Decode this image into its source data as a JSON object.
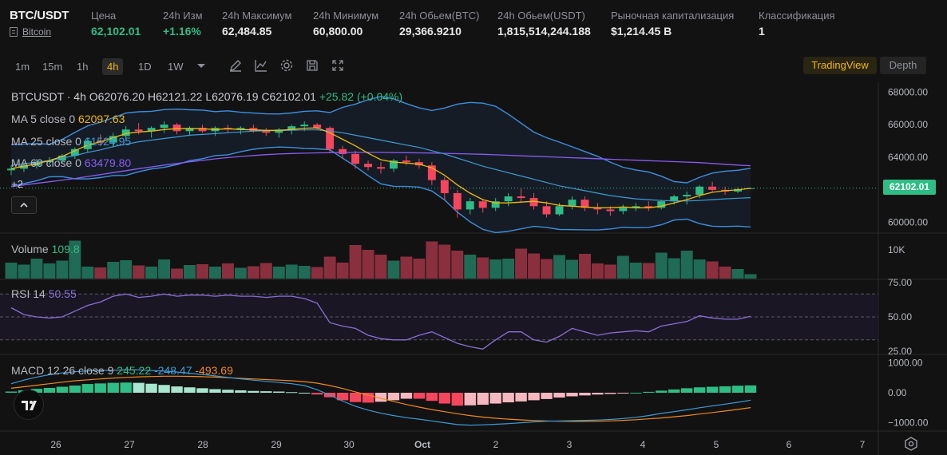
{
  "header": {
    "symbol": "BTC/USDT",
    "asset_name": "Bitcoin",
    "stats": [
      {
        "label": "Цена",
        "value": "62,102.01"
      },
      {
        "label": "24h Изм",
        "value": "+1.16%"
      },
      {
        "label": "24h Максимум",
        "value": "62,484.85"
      },
      {
        "label": "24h Минимум",
        "value": "60,800.00"
      },
      {
        "label": "24h Обьем(BTC)",
        "value": "29,366.9210"
      },
      {
        "label": "24h Обьем(USDT)",
        "value": "1,815,514,244.188"
      },
      {
        "label": "Рыночная капитализация",
        "value": "$1,214.45 B"
      },
      {
        "label": "Классификация",
        "value": "1"
      }
    ]
  },
  "toolbar": {
    "timeframes": [
      "1m",
      "15m",
      "1h",
      "4h",
      "1D",
      "1W"
    ],
    "active_timeframe": "4h",
    "tradingview_label": "TradingView",
    "depth_label": "Depth",
    "icons": [
      "chevron-down-icon",
      "pencil-icon",
      "line-chart-icon",
      "gear-icon",
      "save-icon",
      "fullscreen-icon"
    ]
  },
  "legend": {
    "symbol": "BTCUSDT · 4h",
    "open": "O62076.20",
    "high": "H62121.22",
    "low": "L62076.19",
    "close": "C62102.01",
    "change": "+25.82 (+0.04%)",
    "ma5_label": "MA 5 close 0",
    "ma5_value": "62097.63",
    "ma25_label": "MA 25 close 0",
    "ma25_value": "61524.95",
    "ma60_label": "MA 60 close 0",
    "ma60_value": "63479.80",
    "hidden_count": "+2",
    "volume_label": "Volume",
    "volume_value": "109.8",
    "rsi_label": "RSI 14",
    "rsi_value": "50.55",
    "macd_label": "MACD 12 26 close 9",
    "macd_hist": "245.22",
    "macd_line": "-248.47",
    "macd_signal": "-493.69"
  },
  "colors": {
    "up": "#2ebd85",
    "down": "#f6465d",
    "ma5": "#f0b90b",
    "ma25": "#3d9bd6",
    "ma60": "#8a5cf5",
    "rsi": "#8a6fd6",
    "macd_line": "#3d9bd6",
    "macd_signal": "#f08a1c",
    "accent": "#f0b90b"
  },
  "axes": {
    "price_ticks": [
      "68000.00",
      "66000.00",
      "64000.00",
      "62000.00",
      "60000.00"
    ],
    "last_price": "62102.01",
    "volume_tick": "10K",
    "rsi_ticks": [
      "75.00",
      "50.00",
      "25.00"
    ],
    "macd_ticks": [
      "1000.00",
      "0.00",
      "−1000.00"
    ],
    "time_ticks": [
      "26",
      "27",
      "28",
      "29",
      "30",
      "Oct",
      "2",
      "3",
      "4",
      "5",
      "6",
      "7"
    ]
  },
  "chart_data": {
    "type": "candlestick",
    "ylim": [
      59000,
      69000
    ],
    "candles": [
      [
        63200,
        63500,
        62900,
        63300
      ],
      [
        63300,
        63700,
        63100,
        63500
      ],
      [
        63500,
        63900,
        63300,
        63700
      ],
      [
        63700,
        64000,
        63500,
        63800
      ],
      [
        63800,
        64200,
        63600,
        64100
      ],
      [
        64100,
        64600,
        63900,
        64500
      ],
      [
        64500,
        65200,
        64300,
        65000
      ],
      [
        65000,
        65400,
        64700,
        64900
      ],
      [
        64900,
        65500,
        64600,
        65300
      ],
      [
        65300,
        65900,
        65000,
        65700
      ],
      [
        65700,
        66100,
        65400,
        65600
      ],
      [
        65600,
        65900,
        65200,
        65800
      ],
      [
        65800,
        66200,
        65500,
        66000
      ],
      [
        66000,
        66100,
        65400,
        65600
      ],
      [
        65600,
        65900,
        65300,
        65800
      ],
      [
        65800,
        66000,
        65500,
        65600
      ],
      [
        65600,
        65900,
        65300,
        65800
      ],
      [
        65800,
        66000,
        65500,
        65700
      ],
      [
        65700,
        65900,
        65400,
        65800
      ],
      [
        65800,
        66000,
        65500,
        65600
      ],
      [
        65600,
        65800,
        65300,
        65500
      ],
      [
        65500,
        65800,
        65200,
        65700
      ],
      [
        65700,
        66000,
        65400,
        65900
      ],
      [
        65900,
        66200,
        65600,
        66000
      ],
      [
        66000,
        66100,
        65700,
        65800
      ],
      [
        65800,
        65900,
        64300,
        64500
      ],
      [
        64500,
        64700,
        63900,
        64200
      ],
      [
        64200,
        64400,
        63300,
        63600
      ],
      [
        63600,
        63800,
        63200,
        63400
      ],
      [
        63400,
        63700,
        63000,
        63300
      ],
      [
        63300,
        63900,
        63100,
        63800
      ],
      [
        63800,
        64100,
        63500,
        63700
      ],
      [
        63700,
        63900,
        63300,
        63500
      ],
      [
        63500,
        63700,
        62300,
        62600
      ],
      [
        62600,
        62800,
        61400,
        61800
      ],
      [
        61800,
        62000,
        60300,
        60800
      ],
      [
        60800,
        61500,
        60500,
        61300
      ],
      [
        61300,
        61400,
        60600,
        60900
      ],
      [
        60900,
        61500,
        60700,
        61300
      ],
      [
        61300,
        61800,
        61000,
        61600
      ],
      [
        61600,
        62100,
        61200,
        61500
      ],
      [
        61500,
        61800,
        60800,
        61000
      ],
      [
        61000,
        61300,
        60300,
        60500
      ],
      [
        60500,
        61200,
        60400,
        61000
      ],
      [
        61000,
        61600,
        60800,
        61400
      ],
      [
        61400,
        61600,
        60700,
        60900
      ],
      [
        60900,
        61200,
        60500,
        60800
      ],
      [
        60800,
        61000,
        60400,
        60700
      ],
      [
        60700,
        61100,
        60500,
        60900
      ],
      [
        60900,
        61200,
        60700,
        61000
      ],
      [
        61000,
        61300,
        60700,
        60900
      ],
      [
        60900,
        61400,
        60800,
        61300
      ],
      [
        61300,
        61700,
        61100,
        61600
      ],
      [
        61600,
        61900,
        61100,
        61700
      ],
      [
        61700,
        62300,
        61500,
        62200
      ],
      [
        62200,
        62500,
        61900,
        62000
      ],
      [
        62000,
        62200,
        61700,
        61900
      ],
      [
        61900,
        62150,
        61800,
        62050
      ],
      [
        62076,
        62121,
        62076,
        62102
      ]
    ],
    "ma5": [
      63300,
      63450,
      63600,
      63800,
      64050,
      64400,
      64750,
      64950,
      65200,
      65450,
      65550,
      65600,
      65700,
      65750,
      65750,
      65750,
      65700,
      65750,
      65700,
      65680,
      65650,
      65650,
      65700,
      65780,
      65800,
      65500,
      65100,
      64700,
      64250,
      63850,
      63700,
      63650,
      63580,
      63350,
      62900,
      62300,
      61800,
      61400,
      61200,
      61200,
      61250,
      61300,
      61200,
      61050,
      61000,
      60950,
      60900,
      60900,
      60950,
      60900,
      60900,
      61000,
      61200,
      61400,
      61650,
      61850,
      61950,
      62000,
      62097
    ],
    "ma25": [
      63500,
      63600,
      63700,
      63800,
      63950,
      64100,
      64300,
      64450,
      64650,
      64800,
      64950,
      65050,
      65150,
      65250,
      65350,
      65400,
      65450,
      65500,
      65550,
      65600,
      65620,
      65640,
      65660,
      65680,
      65680,
      65600,
      65500,
      65350,
      65200,
      65050,
      64900,
      64750,
      64600,
      64400,
      64200,
      63950,
      63700,
      63450,
      63250,
      63050,
      62850,
      62650,
      62450,
      62250,
      62100,
      61950,
      61800,
      61650,
      61550,
      61450,
      61400,
      61350,
      61330,
      61320,
      61350,
      61400,
      61450,
      61490,
      61525
    ],
    "ma60": [
      62200,
      62300,
      62400,
      62500,
      62600,
      62700,
      62820,
      62940,
      63060,
      63180,
      63300,
      63410,
      63520,
      63620,
      63720,
      63810,
      63900,
      63980,
      64050,
      64110,
      64160,
      64200,
      64230,
      64250,
      64270,
      64280,
      64290,
      64300,
      64300,
      64300,
      64290,
      64280,
      64270,
      64260,
      64240,
      64220,
      64200,
      64180,
      64150,
      64120,
      64090,
      64060,
      64030,
      64000,
      63970,
      63940,
      63910,
      63880,
      63850,
      63820,
      63790,
      63760,
      63730,
      63700,
      63670,
      63620,
      63570,
      63520,
      63480
    ],
    "volume": [
      4.0,
      3.5,
      5.0,
      3.8,
      4.5,
      9.5,
      3.0,
      2.8,
      4.2,
      4.6,
      3.3,
      3.0,
      4.8,
      2.5,
      3.4,
      3.6,
      3.0,
      3.8,
      2.7,
      3.1,
      3.9,
      3.0,
      3.5,
      3.2,
      2.9,
      5.5,
      4.0,
      8.4,
      7.2,
      6.0,
      4.5,
      5.5,
      5.0,
      9.3,
      8.5,
      7.0,
      6.0,
      5.3,
      4.8,
      5.0,
      7.5,
      6.3,
      4.9,
      5.9,
      4.7,
      6.2,
      3.8,
      3.5,
      5.7,
      4.0,
      3.9,
      6.5,
      5.1,
      7.0,
      4.8,
      4.3,
      3.0,
      2.4,
      1.1
    ],
    "rsi": [
      58,
      52,
      50,
      49,
      50,
      55,
      60,
      63,
      68,
      70,
      67,
      68,
      70,
      68,
      69,
      69,
      68,
      69,
      68,
      68,
      67,
      68,
      68,
      66,
      62,
      45,
      42,
      40,
      34,
      31,
      30,
      30,
      34,
      37,
      32,
      27,
      24,
      22,
      30,
      37,
      37,
      30,
      28,
      33,
      40,
      37,
      34,
      36,
      37,
      38,
      37,
      42,
      44,
      46,
      51,
      49,
      48,
      48,
      50.5
    ],
    "macd_hist": [
      40,
      80,
      130,
      160,
      200,
      240,
      290,
      310,
      330,
      340,
      330,
      300,
      260,
      210,
      180,
      150,
      120,
      100,
      80,
      60,
      50,
      40,
      20,
      0,
      -60,
      -150,
      -250,
      -310,
      -330,
      -300,
      -250,
      -200,
      -200,
      -270,
      -360,
      -430,
      -420,
      -400,
      -360,
      -320,
      -290,
      -250,
      -210,
      -160,
      -120,
      -90,
      -60,
      -40,
      -20,
      0,
      30,
      70,
      110,
      150,
      180,
      200,
      215,
      235,
      245
    ],
    "macd_line": [
      300,
      420,
      520,
      600,
      660,
      700,
      730,
      740,
      750,
      760,
      760,
      740,
      720,
      690,
      650,
      610,
      560,
      510,
      460,
      420,
      380,
      340,
      300,
      240,
      100,
      -80,
      -280,
      -450,
      -580,
      -680,
      -760,
      -830,
      -880,
      -940,
      -1000,
      -1060,
      -1080,
      -1070,
      -1050,
      -1030,
      -1000,
      -970,
      -950,
      -940,
      -930,
      -920,
      -910,
      -890,
      -860,
      -820,
      -760,
      -690,
      -630,
      -570,
      -500,
      -440,
      -380,
      -320,
      -248
    ],
    "macd_signal": [
      150,
      200,
      250,
      300,
      350,
      400,
      430,
      460,
      490,
      510,
      530,
      540,
      550,
      550,
      545,
      535,
      520,
      500,
      480,
      460,
      440,
      420,
      400,
      370,
      320,
      240,
      140,
      30,
      -80,
      -190,
      -290,
      -390,
      -480,
      -560,
      -630,
      -700,
      -760,
      -810,
      -850,
      -880,
      -905,
      -925,
      -940,
      -950,
      -955,
      -955,
      -950,
      -940,
      -920,
      -900,
      -870,
      -840,
      -800,
      -760,
      -710,
      -660,
      -610,
      -555,
      -494
    ]
  }
}
